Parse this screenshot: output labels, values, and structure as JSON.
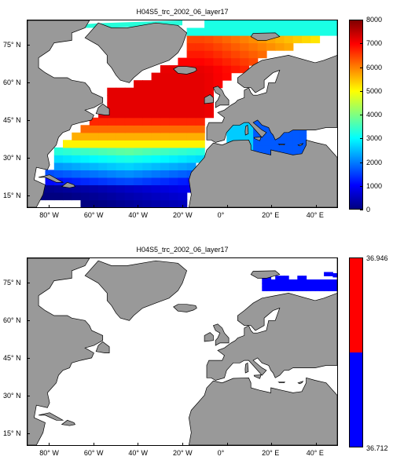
{
  "panels": [
    {
      "title": "H04S5_trc_2002_06_layer17",
      "colorbar": {
        "type": "continuous",
        "ticks": [
          "8000",
          "7000",
          "6000",
          "5000",
          "4000",
          "3000",
          "2000",
          "1000",
          "0"
        ],
        "range": [
          0,
          8000
        ],
        "colormap": "jet"
      }
    },
    {
      "title": "H04S5_trc_2002_06_layer17",
      "colorbar": {
        "type": "two-class",
        "top_label": "36.946",
        "bottom_label": "36.712",
        "colors": [
          "#ff0000",
          "#0000ff"
        ]
      }
    }
  ],
  "axes": {
    "lon_ticks": [
      {
        "v": -80,
        "label": "80° W"
      },
      {
        "v": -60,
        "label": "60° W"
      },
      {
        "v": -40,
        "label": "40° W"
      },
      {
        "v": -20,
        "label": "20° W"
      },
      {
        "v": 0,
        "label": "0°"
      },
      {
        "v": 20,
        "label": "20° E"
      },
      {
        "v": 40,
        "label": "40° E"
      }
    ],
    "lat_ticks": [
      {
        "v": 75,
        "label": "75° N"
      },
      {
        "v": 60,
        "label": "60° N"
      },
      {
        "v": 45,
        "label": "45° N"
      },
      {
        "v": 30,
        "label": "30° N"
      },
      {
        "v": 15,
        "label": "15° N"
      }
    ],
    "lon_range": [
      -90,
      50
    ],
    "lat_range": [
      10,
      85
    ]
  },
  "colors": {
    "land": "#999999",
    "ocean": "#ffffff",
    "coast": "#000000"
  }
}
